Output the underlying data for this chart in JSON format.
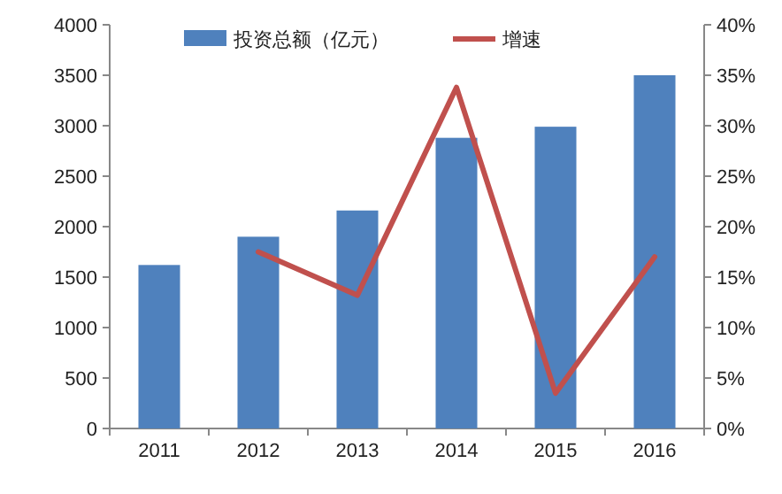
{
  "chart_data": {
    "type": "bar",
    "categories": [
      "2011",
      "2012",
      "2013",
      "2014",
      "2015",
      "2016"
    ],
    "series": [
      {
        "name": "投资总额（亿元）",
        "color": "#4f81bd",
        "values": [
          1620,
          1900,
          2160,
          2880,
          2990,
          3500
        ]
      },
      {
        "name": "增速",
        "type": "line",
        "axis": "y2",
        "color": "#c0504d",
        "values": [
          null,
          17.5,
          13.2,
          33.8,
          3.5,
          17.0
        ]
      }
    ],
    "ylim": [
      0,
      4000
    ],
    "yticks": [
      0,
      500,
      1000,
      1500,
      2000,
      2500,
      3000,
      3500,
      4000
    ],
    "y2lim": [
      0,
      40
    ],
    "y2ticks": [
      {
        "value": 0,
        "label": "0%"
      },
      {
        "value": 5,
        "label": "5%"
      },
      {
        "value": 10,
        "label": "10%"
      },
      {
        "value": 15,
        "label": "15%"
      },
      {
        "value": 20,
        "label": "20%"
      },
      {
        "value": 25,
        "label": "25%"
      },
      {
        "value": 30,
        "label": "30%"
      },
      {
        "value": 35,
        "label": "35%"
      },
      {
        "value": 40,
        "label": "40%"
      }
    ],
    "legend": "top",
    "grid": false,
    "marker": "none",
    "line_style": "solid"
  }
}
